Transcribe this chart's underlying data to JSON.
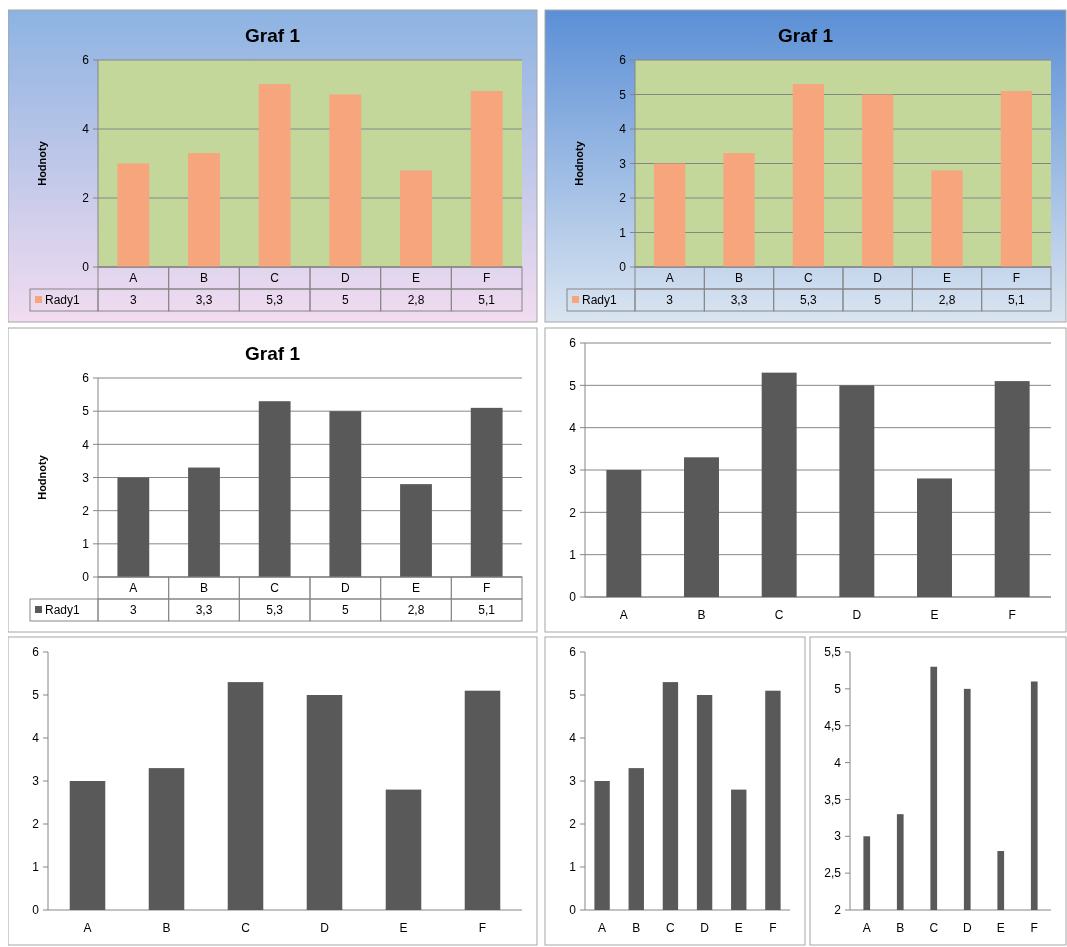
{
  "chart_data": [
    {
      "type": "bar",
      "title": "Graf 1",
      "ylabel": "Hodnoty",
      "categories": [
        "A",
        "B",
        "C",
        "D",
        "E",
        "F"
      ],
      "series": [
        {
          "name": "Rady1",
          "color": "#f6a57c",
          "values": [
            3,
            3.3,
            5.3,
            5,
            2.8,
            5.1
          ],
          "value_labels": [
            "3",
            "3,3",
            "5,3",
            "5",
            "2,8",
            "5,1"
          ]
        }
      ],
      "ylim": [
        0,
        6
      ],
      "yticks": [
        0,
        2,
        4,
        6
      ],
      "grid": "y"
    },
    {
      "type": "bar",
      "title": "Graf 1",
      "ylabel": "Hodnoty",
      "categories": [
        "A",
        "B",
        "C",
        "D",
        "E",
        "F"
      ],
      "series": [
        {
          "name": "Rady1",
          "color": "#f6a57c",
          "values": [
            3,
            3.3,
            5.3,
            5,
            2.8,
            5.1
          ],
          "value_labels": [
            "3",
            "3,3",
            "5,3",
            "5",
            "2,8",
            "5,1"
          ]
        }
      ],
      "ylim": [
        0,
        6
      ],
      "yticks": [
        0,
        1,
        2,
        3,
        4,
        5,
        6
      ],
      "grid": "y"
    },
    {
      "type": "bar",
      "title": "Graf 1",
      "ylabel": "Hodnoty",
      "categories": [
        "A",
        "B",
        "C",
        "D",
        "E",
        "F"
      ],
      "series": [
        {
          "name": "Rady1",
          "color": "#595959",
          "values": [
            3,
            3.3,
            5.3,
            5,
            2.8,
            5.1
          ],
          "value_labels": [
            "3",
            "3,3",
            "5,3",
            "5",
            "2,8",
            "5,1"
          ]
        }
      ],
      "ylim": [
        0,
        6
      ],
      "yticks": [
        0,
        1,
        2,
        3,
        4,
        5,
        6
      ],
      "grid": "y"
    },
    {
      "type": "bar",
      "categories": [
        "A",
        "B",
        "C",
        "D",
        "E",
        "F"
      ],
      "series": [
        {
          "color": "#595959",
          "values": [
            3,
            3.3,
            5.3,
            5,
            2.8,
            5.1
          ]
        }
      ],
      "ylim": [
        0,
        6
      ],
      "yticks": [
        0,
        1,
        2,
        3,
        4,
        5,
        6
      ],
      "grid": "y"
    },
    {
      "type": "bar",
      "categories": [
        "A",
        "B",
        "C",
        "D",
        "E",
        "F"
      ],
      "series": [
        {
          "color": "#595959",
          "values": [
            3,
            3.3,
            5.3,
            5,
            2.8,
            5.1
          ]
        }
      ],
      "ylim": [
        0,
        6
      ],
      "yticks": [
        0,
        1,
        2,
        3,
        4,
        5,
        6
      ]
    },
    {
      "type": "bar",
      "categories": [
        "A",
        "B",
        "C",
        "D",
        "E",
        "F"
      ],
      "series": [
        {
          "color": "#595959",
          "values": [
            3,
            3.3,
            5.3,
            5,
            2.8,
            5.1
          ]
        }
      ],
      "ylim": [
        0,
        6
      ],
      "yticks": [
        0,
        1,
        2,
        3,
        4,
        5,
        6
      ]
    },
    {
      "type": "bar",
      "categories": [
        "A",
        "B",
        "C",
        "D",
        "E",
        "F"
      ],
      "series": [
        {
          "color": "#595959",
          "values": [
            3,
            3.3,
            5.3,
            5,
            2.8,
            5.1
          ]
        }
      ],
      "ylim": [
        2,
        5.5
      ],
      "yticks": [
        2,
        {
          "value": 2.5,
          "label": "2,5"
        },
        3,
        {
          "value": 3.5,
          "label": "3,5"
        },
        4,
        {
          "value": 4.5,
          "label": "4,5"
        },
        5,
        {
          "value": 5.5,
          "label": "5,5"
        }
      ]
    }
  ]
}
